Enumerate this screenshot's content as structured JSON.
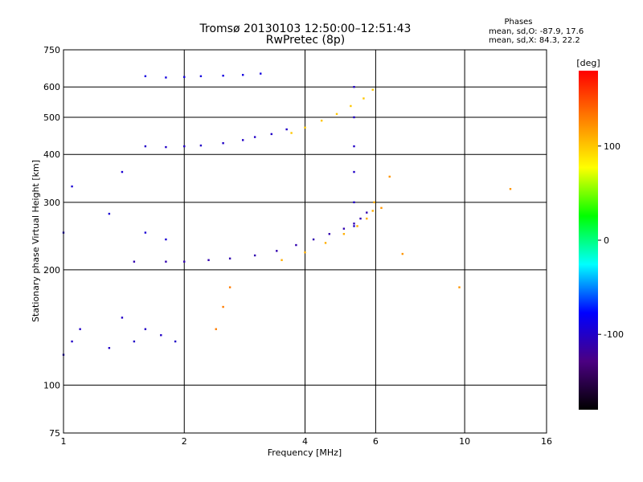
{
  "chart_data": {
    "type": "scatter",
    "title": "Tromsø 20130103 12:50:00–12:51:43",
    "subtitle": "RwPretec (8p)",
    "xlabel": "Frequency [MHz]",
    "ylabel": "Stationary phase Virtual Height [km]",
    "x_scale": "log",
    "y_scale": "log",
    "xlim": [
      1,
      16
    ],
    "ylim": [
      75,
      750
    ],
    "x_ticks": [
      {
        "value": 1,
        "label": "1"
      },
      {
        "value": 2,
        "label": "2"
      },
      {
        "value": 4,
        "label": "4"
      },
      {
        "value": 6,
        "label": "6"
      },
      {
        "value": 10,
        "label": "10"
      },
      {
        "value": 16,
        "label": "16"
      }
    ],
    "y_ticks": [
      {
        "value": 75,
        "label": "75"
      },
      {
        "value": 100,
        "label": "100"
      },
      {
        "value": 200,
        "label": "200"
      },
      {
        "value": 300,
        "label": "300"
      },
      {
        "value": 400,
        "label": "400"
      },
      {
        "value": 500,
        "label": "500"
      },
      {
        "value": 600,
        "label": "600"
      },
      {
        "value": 750,
        "label": "750"
      }
    ],
    "grid": true,
    "stats": {
      "heading": "Phases",
      "line_o": "mean, sd,O: -87.9, 17.6",
      "line_x": "mean, sd,X:  84.3, 22.2"
    },
    "colorbar": {
      "label": "[deg]",
      "range": [
        -180,
        180
      ],
      "ticks": [
        {
          "value": 100,
          "label": "100"
        },
        {
          "value": 0,
          "label": "0"
        },
        {
          "value": -100,
          "label": "-100"
        }
      ],
      "stops": [
        "#000000",
        "#4b0082",
        "#0000ff",
        "#00ffff",
        "#00ff00",
        "#ffff00",
        "#ff8000",
        "#ff0000"
      ]
    },
    "traces": [
      {
        "name": "",
        "phase": -100,
        "x": [
          1.6,
          1.8,
          2.0,
          2.2,
          2.5,
          2.8,
          3.0,
          3.3,
          3.6
        ],
        "y": [
          420,
          418,
          420,
          422,
          428,
          436,
          444,
          452,
          465
        ]
      },
      {
        "name": "",
        "phase": -110,
        "x": [
          1.5,
          1.8,
          2.0,
          2.3,
          2.6,
          3.0,
          3.4,
          3.8,
          4.2,
          4.6,
          5.0,
          5.3,
          5.5,
          5.7
        ],
        "y": [
          210,
          210,
          210,
          212,
          214,
          218,
          224,
          232,
          240,
          248,
          256,
          264,
          272,
          282
        ]
      },
      {
        "name": "",
        "phase": -100,
        "x": [
          5.3,
          5.3,
          5.3,
          5.3,
          5.3,
          5.3
        ],
        "y": [
          260,
          300,
          360,
          420,
          500,
          600
        ]
      },
      {
        "name": "",
        "phase": 100,
        "x": [
          3.7,
          4.0,
          4.4,
          4.8,
          5.2,
          5.6,
          5.9
        ],
        "y": [
          455,
          470,
          490,
          510,
          535,
          560,
          590
        ]
      },
      {
        "name": "",
        "phase": 110,
        "x": [
          3.5,
          4.0,
          4.5,
          5.0,
          5.4,
          5.7,
          5.9,
          5.95
        ],
        "y": [
          212,
          222,
          235,
          248,
          260,
          272,
          285,
          300
        ]
      },
      {
        "name": "",
        "phase": -90,
        "x": [
          1.6,
          1.8,
          2.0,
          2.2,
          2.5,
          2.8,
          3.1
        ],
        "y": [
          640,
          635,
          637,
          640,
          642,
          645,
          650
        ]
      },
      {
        "name": "",
        "phase": -100,
        "x": [
          1.0,
          1.05,
          1.1,
          1.3,
          1.4,
          1.5,
          1.6,
          1.75,
          1.9
        ],
        "y": [
          120,
          130,
          140,
          125,
          150,
          130,
          140,
          135,
          130
        ]
      },
      {
        "name": "",
        "phase": -95,
        "x": [
          1.0,
          1.05,
          1.3,
          1.4,
          1.6,
          1.8
        ],
        "y": [
          250,
          330,
          280,
          360,
          250,
          240
        ]
      },
      {
        "name": "",
        "phase": 130,
        "x": [
          2.4,
          2.5,
          2.6
        ],
        "y": [
          140,
          160,
          180
        ]
      },
      {
        "name": "",
        "phase": 120,
        "x": [
          6.2,
          6.5,
          7.0,
          9.7,
          13.0
        ],
        "y": [
          290,
          350,
          220,
          180,
          325
        ]
      }
    ]
  }
}
